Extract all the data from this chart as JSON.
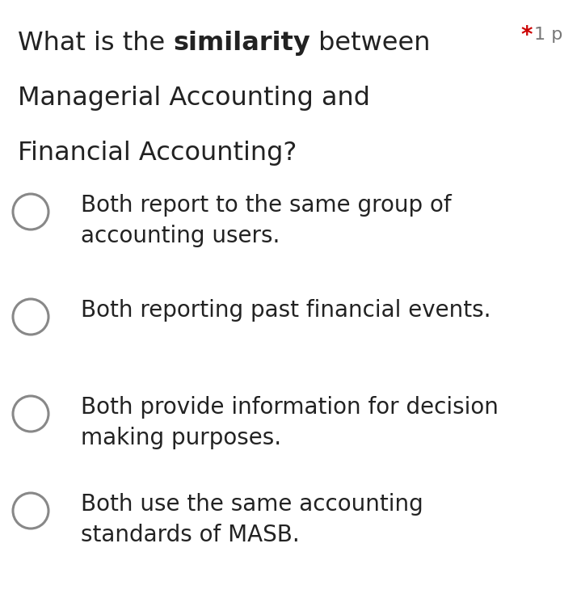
{
  "background_color": "#ffffff",
  "text_color": "#222222",
  "asterisk_color": "#cc0000",
  "point_color": "#777777",
  "header_fontsize": 23,
  "option_fontsize": 20,
  "circle_color": "#888888",
  "circle_linewidth": 2.2,
  "options": [
    [
      "Both report to the same group of",
      "accounting users."
    ],
    [
      "Both reporting past financial events.",
      ""
    ],
    [
      "Both provide information for decision",
      "making purposes."
    ],
    [
      "Both use the same accounting",
      "standards of MASB."
    ]
  ],
  "fig_width": 7.19,
  "fig_height": 7.35,
  "dpi": 100
}
